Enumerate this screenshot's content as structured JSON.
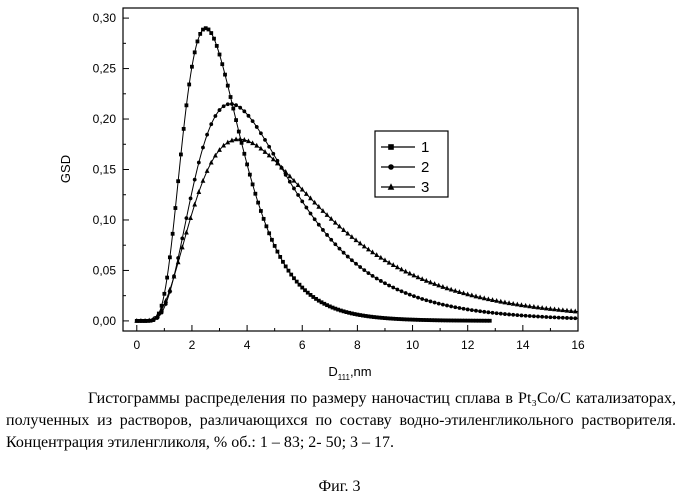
{
  "chart_data": {
    "type": "line",
    "xlabel_main": "D",
    "xlabel_sub": "111",
    "xlabel_unit": ",nm",
    "ylabel": "GSD",
    "xlim": [
      -0.5,
      16
    ],
    "ylim": [
      -0.01,
      0.31
    ],
    "x_ticks": [
      0,
      2,
      4,
      6,
      8,
      10,
      12,
      14,
      16
    ],
    "y_ticks": [
      0.0,
      0.05,
      0.1,
      0.15,
      0.2,
      0.25,
      0.3
    ],
    "y_tick_labels": [
      "0,00",
      "0,05",
      "0,10",
      "0,15",
      "0,20",
      "0,25",
      "0,30"
    ],
    "legend_position": "right-center",
    "series": [
      {
        "name": "1",
        "marker": "square",
        "peak_x": 2.5,
        "peak_y": 0.29,
        "x_max": 12.8,
        "x": [
          0,
          1,
          2,
          2.5,
          3,
          4,
          5,
          6,
          7,
          8,
          10,
          12
        ],
        "y": [
          0.0,
          0.096,
          0.262,
          0.29,
          0.271,
          0.179,
          0.092,
          0.043,
          0.02,
          0.009,
          0.002,
          0.0
        ]
      },
      {
        "name": "2",
        "marker": "circle",
        "peak_x": 3.4,
        "peak_y": 0.215,
        "x_max": 16,
        "x": [
          0,
          1,
          2,
          3,
          3.4,
          4,
          5,
          6,
          7,
          8,
          10,
          12,
          14,
          16
        ],
        "y": [
          0.0,
          0.043,
          0.146,
          0.21,
          0.215,
          0.207,
          0.169,
          0.12,
          0.079,
          0.049,
          0.017,
          0.005,
          0.002,
          0.0
        ]
      },
      {
        "name": "3",
        "marker": "triangle",
        "peak_x": 3.7,
        "peak_y": 0.18,
        "x_max": 16,
        "x": [
          0,
          1,
          2,
          3,
          3.7,
          4,
          5,
          6,
          7,
          8,
          10,
          12,
          14,
          16
        ],
        "y": [
          0.0,
          0.025,
          0.094,
          0.158,
          0.18,
          0.178,
          0.162,
          0.131,
          0.098,
          0.069,
          0.031,
          0.012,
          0.004,
          0.001
        ]
      }
    ]
  },
  "caption": "Гистограммы распределения по размеру наночастиц сплава в Pt₃Co/C катализаторах, полученных из растворов, различающихся по составу водно-этиленгликольного растворителя. Концентрация этиленгликоля, % об.: 1 – 83; 2- 50; 3 – 17.",
  "figure_label": "Фиг. 3"
}
